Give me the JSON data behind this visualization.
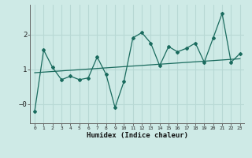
{
  "x": [
    0,
    1,
    2,
    3,
    4,
    5,
    6,
    7,
    8,
    9,
    10,
    11,
    12,
    13,
    14,
    15,
    16,
    17,
    18,
    19,
    20,
    21,
    22,
    23
  ],
  "y_main": [
    -0.2,
    1.55,
    1.05,
    0.7,
    0.8,
    0.7,
    0.75,
    1.35,
    0.85,
    -0.1,
    0.65,
    1.9,
    2.05,
    1.75,
    1.1,
    1.65,
    1.5,
    1.6,
    1.75,
    1.2,
    1.9,
    2.6,
    1.2,
    1.45
  ],
  "trend_x": [
    0,
    23
  ],
  "trend_y": [
    0.9,
    1.3
  ],
  "bg_color": "#ceeae6",
  "line_color": "#1a6b5e",
  "grid_color": "#b8d8d4",
  "xlabel": "Humidex (Indice chaleur)",
  "yticks": [
    0,
    1,
    2
  ],
  "ytick_labels": [
    "−0",
    "1",
    "2"
  ],
  "ylim": [
    -0.55,
    2.85
  ],
  "xlim": [
    -0.5,
    23.5
  ],
  "xtick_labels": [
    "0",
    "1",
    "2",
    "3",
    "4",
    "5",
    "6",
    "7",
    "8",
    "9",
    "10",
    "11",
    "12",
    "13",
    "14",
    "15",
    "16",
    "17",
    "18",
    "19",
    "20",
    "21",
    "22",
    "23"
  ]
}
